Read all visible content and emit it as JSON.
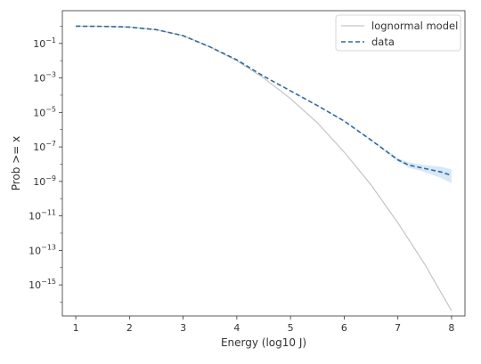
{
  "chart_data": {
    "type": "line",
    "title": "",
    "xlabel": "Energy (log10 J)",
    "ylabel": "Prob >= x",
    "xlim": [
      0.75,
      8.25
    ],
    "ylim_log10": [
      -16.8,
      0.9
    ],
    "y_scale": "log",
    "grid": false,
    "legend_position": "top-right",
    "x_ticks": [
      1,
      2,
      3,
      4,
      5,
      6,
      7,
      8
    ],
    "y_ticks": [
      {
        "exp": -1,
        "label": "10",
        "sup": "−1"
      },
      {
        "exp": -3,
        "label": "10",
        "sup": "−3"
      },
      {
        "exp": -5,
        "label": "10",
        "sup": "−5"
      },
      {
        "exp": -7,
        "label": "10",
        "sup": "−7"
      },
      {
        "exp": -9,
        "label": "10",
        "sup": "−9"
      },
      {
        "exp": -11,
        "label": "10",
        "sup": "−11"
      },
      {
        "exp": -13,
        "label": "10",
        "sup": "−13"
      },
      {
        "exp": -15,
        "label": "10",
        "sup": "−15"
      }
    ],
    "series": [
      {
        "name": "lognormal model",
        "style": "solid",
        "color": "#c8c8c8",
        "x": [
          1.0,
          1.5,
          2.0,
          2.5,
          3.0,
          3.5,
          4.0,
          4.5,
          5.0,
          5.5,
          6.0,
          6.5,
          7.0,
          7.5,
          8.0
        ],
        "log10_y": [
          0.0,
          -0.01,
          -0.05,
          -0.2,
          -0.55,
          -1.2,
          -2.0,
          -3.0,
          -4.2,
          -5.6,
          -7.3,
          -9.2,
          -11.4,
          -13.8,
          -16.5
        ]
      },
      {
        "name": "data",
        "style": "dashed",
        "color": "#2f6a9a",
        "x": [
          1.0,
          1.5,
          2.0,
          2.5,
          3.0,
          3.5,
          4.0,
          4.5,
          5.0,
          5.5,
          6.0,
          6.5,
          7.0,
          7.2,
          7.5,
          7.8,
          8.0
        ],
        "log10_y": [
          0.0,
          -0.01,
          -0.05,
          -0.2,
          -0.55,
          -1.2,
          -1.95,
          -2.9,
          -3.75,
          -4.6,
          -5.5,
          -6.6,
          -7.75,
          -8.05,
          -8.25,
          -8.45,
          -8.65
        ],
        "band_color": "#a9cdee",
        "band_upper_log10": [
          0.0,
          -0.01,
          -0.05,
          -0.2,
          -0.55,
          -1.2,
          -1.95,
          -2.9,
          -3.73,
          -4.57,
          -5.46,
          -6.55,
          -7.65,
          -7.9,
          -8.05,
          -8.15,
          -8.3
        ],
        "band_lower_log10": [
          0.0,
          -0.01,
          -0.05,
          -0.2,
          -0.55,
          -1.2,
          -1.95,
          -2.9,
          -3.77,
          -4.63,
          -5.54,
          -6.65,
          -7.85,
          -8.2,
          -8.45,
          -8.8,
          -9.1
        ]
      }
    ]
  }
}
